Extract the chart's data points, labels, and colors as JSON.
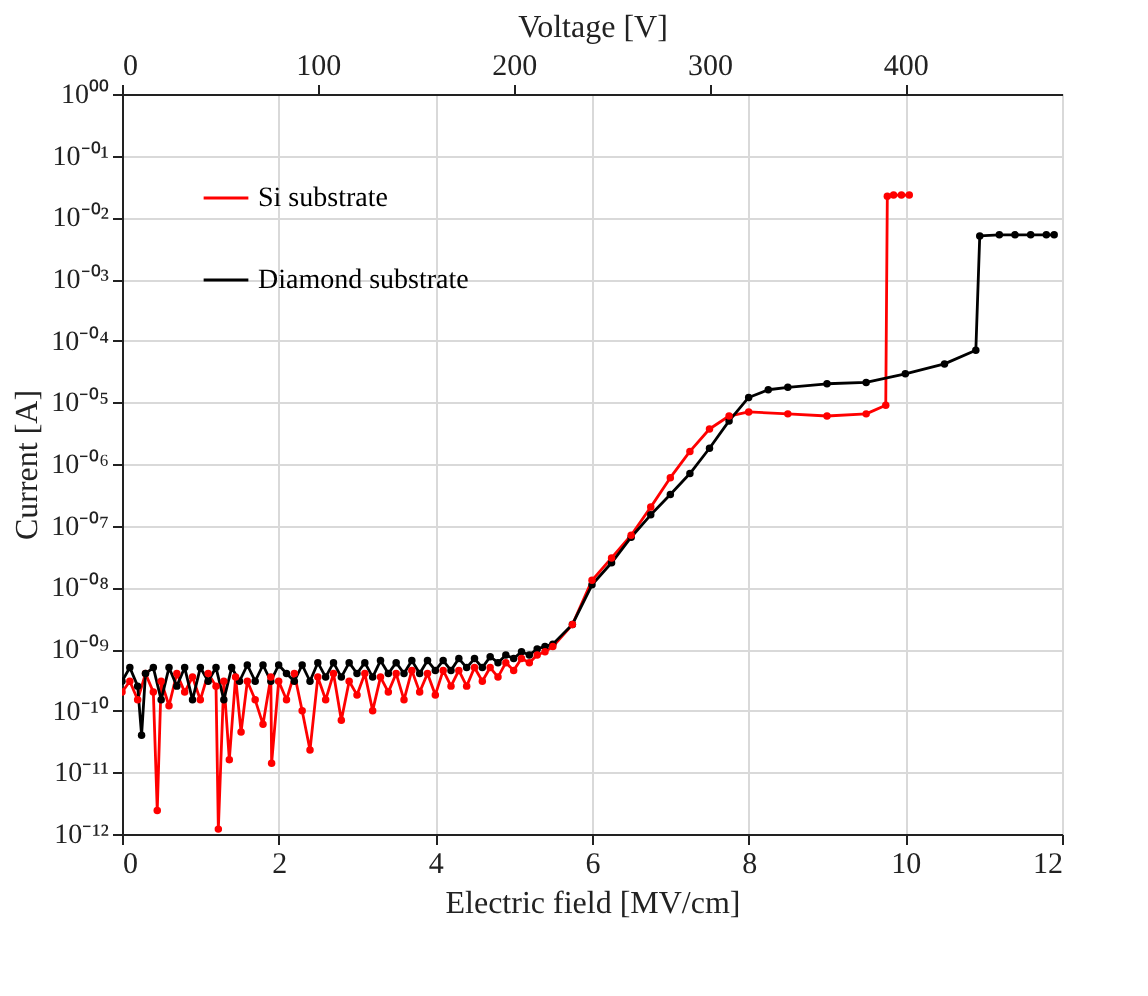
{
  "chart_data": {
    "type": "line",
    "xlabel": "Electric field [MV/cm]",
    "ylabel": "Current [A]",
    "x2label": "Voltage [V]",
    "xlim": [
      0,
      12
    ],
    "xticks": [
      0,
      2,
      4,
      6,
      8,
      10,
      12
    ],
    "x2lim": [
      0,
      480
    ],
    "x2ticks": [
      0,
      100,
      200,
      300,
      400
    ],
    "ylim": [
      1e-12,
      1
    ],
    "log": "y",
    "yticks": [
      {
        "value": 1e-12,
        "label": "10⁻¹²"
      },
      {
        "value": 1e-11,
        "label": "10⁻¹¹"
      },
      {
        "value": 1e-10,
        "label": "10⁻¹⁰"
      },
      {
        "value": 1e-09,
        "label": "10⁻⁰⁹"
      },
      {
        "value": 1e-08,
        "label": "10⁻⁰⁸"
      },
      {
        "value": 1e-07,
        "label": "10⁻⁰⁷"
      },
      {
        "value": 1e-06,
        "label": "10⁻⁰⁶"
      },
      {
        "value": 1e-05,
        "label": "10⁻⁰⁵"
      },
      {
        "value": 0.0001,
        "label": "10⁻⁰⁴"
      },
      {
        "value": 0.001,
        "label": "10⁻⁰³"
      },
      {
        "value": 0.01,
        "label": "10⁻⁰²"
      },
      {
        "value": 0.1,
        "label": "10⁻⁰¹"
      },
      {
        "value": 1,
        "label": "10⁰⁰"
      }
    ],
    "grid": true,
    "legend": "top left",
    "marker": "circle",
    "line_style": "solid",
    "series": [
      {
        "name": "Si substrate",
        "color": "#ff0000",
        "x": [
          0.0,
          0.1,
          0.2,
          0.3,
          0.4,
          0.45,
          0.5,
          0.6,
          0.7,
          0.8,
          0.9,
          1.0,
          1.1,
          1.2,
          1.23,
          1.3,
          1.37,
          1.45,
          1.52,
          1.6,
          1.7,
          1.8,
          1.9,
          1.91,
          2.0,
          2.1,
          2.2,
          2.3,
          2.4,
          2.5,
          2.6,
          2.7,
          2.8,
          2.9,
          3.0,
          3.1,
          3.2,
          3.3,
          3.4,
          3.5,
          3.6,
          3.7,
          3.8,
          3.9,
          4.0,
          4.1,
          4.2,
          4.3,
          4.4,
          4.5,
          4.6,
          4.7,
          4.8,
          4.9,
          5.0,
          5.1,
          5.2,
          5.3,
          5.4,
          5.5,
          5.75,
          6.0,
          6.25,
          6.5,
          6.75,
          7.0,
          7.25,
          7.5,
          7.75,
          8.0,
          8.5,
          9.0,
          9.5,
          9.75,
          9.77,
          9.85,
          9.95,
          10.05
        ],
        "values": [
          2e-10,
          3e-10,
          1.5e-10,
          4e-10,
          2e-10,
          2.4e-12,
          3e-10,
          1.2e-10,
          4e-10,
          2e-10,
          3.5e-10,
          1.5e-10,
          4e-10,
          2.5e-10,
          1.2e-12,
          3e-10,
          1.6e-11,
          3.5e-10,
          4.5e-11,
          3e-10,
          1.5e-10,
          6e-11,
          3.5e-10,
          1.4e-11,
          3e-10,
          1.5e-10,
          4e-10,
          1e-10,
          2.3e-11,
          3.5e-10,
          1.5e-10,
          4e-10,
          7e-11,
          3e-10,
          1.8e-10,
          4e-10,
          1e-10,
          3.5e-10,
          2e-10,
          4e-10,
          1.5e-10,
          4.5e-10,
          2e-10,
          4e-10,
          1.8e-10,
          4.5e-10,
          2.5e-10,
          4.5e-10,
          2.5e-10,
          5e-10,
          3e-10,
          5e-10,
          3.5e-10,
          6e-10,
          4.5e-10,
          7e-10,
          6e-10,
          8e-10,
          9e-10,
          1.1e-09,
          2.5e-09,
          1.3e-08,
          3e-08,
          7e-08,
          2e-07,
          6e-07,
          1.6e-06,
          3.7e-06,
          6e-06,
          7e-06,
          6.5e-06,
          6e-06,
          6.5e-06,
          9e-06,
          0.022,
          0.023,
          0.023,
          0.023
        ]
      },
      {
        "name": "Diamond substrate",
        "color": "#000000",
        "x": [
          0.0,
          0.1,
          0.2,
          0.25,
          0.3,
          0.4,
          0.5,
          0.6,
          0.7,
          0.8,
          0.9,
          1.0,
          1.1,
          1.2,
          1.3,
          1.4,
          1.5,
          1.6,
          1.7,
          1.8,
          1.9,
          2.0,
          2.1,
          2.2,
          2.3,
          2.4,
          2.5,
          2.6,
          2.7,
          2.8,
          2.9,
          3.0,
          3.1,
          3.2,
          3.3,
          3.4,
          3.5,
          3.6,
          3.7,
          3.8,
          3.9,
          4.0,
          4.1,
          4.2,
          4.3,
          4.4,
          4.5,
          4.6,
          4.7,
          4.8,
          4.9,
          5.0,
          5.1,
          5.2,
          5.3,
          5.4,
          5.5,
          5.75,
          6.0,
          6.25,
          6.5,
          6.75,
          7.0,
          7.25,
          7.5,
          7.75,
          8.0,
          8.25,
          8.5,
          9.0,
          9.5,
          10.0,
          10.5,
          10.9,
          10.95,
          11.2,
          11.4,
          11.6,
          11.8,
          11.9
        ],
        "values": [
          3e-10,
          5e-10,
          2.5e-10,
          4e-11,
          4e-10,
          5e-10,
          1.5e-10,
          5e-10,
          2.5e-10,
          5e-10,
          1.5e-10,
          5e-10,
          3e-10,
          5e-10,
          1.5e-10,
          5e-10,
          3e-10,
          5.5e-10,
          3e-10,
          5.5e-10,
          3e-10,
          5.5e-10,
          4e-10,
          3e-10,
          5.5e-10,
          3e-10,
          6e-10,
          3.5e-10,
          6e-10,
          3.5e-10,
          6e-10,
          4e-10,
          6e-10,
          3.5e-10,
          6.5e-10,
          4e-10,
          6e-10,
          4e-10,
          6.5e-10,
          4e-10,
          6.5e-10,
          4.5e-10,
          6.5e-10,
          4.5e-10,
          7e-10,
          5e-10,
          7e-10,
          5e-10,
          7.5e-10,
          6e-10,
          8e-10,
          7e-10,
          9e-10,
          8e-10,
          1e-09,
          1.1e-09,
          1.2e-09,
          2.5e-09,
          1.1e-08,
          2.5e-08,
          6.5e-08,
          1.5e-07,
          3.2e-07,
          7e-07,
          1.8e-06,
          5e-06,
          1.2e-05,
          1.6e-05,
          1.75e-05,
          2e-05,
          2.1e-05,
          2.9e-05,
          4.2e-05,
          7e-05,
          0.005,
          0.0052,
          0.0052,
          0.0052,
          0.0052,
          0.0052
        ]
      }
    ]
  }
}
